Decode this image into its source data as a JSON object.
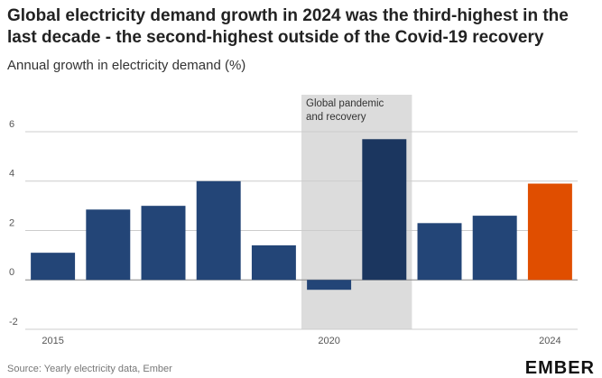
{
  "chart_data": {
    "type": "bar",
    "title": "Global electricity demand growth in 2024 was the third-highest in the last decade - the second-highest outside of the Covid-19 recovery",
    "subtitle": "Annual growth in electricity demand (%)",
    "x": [
      2015,
      2016,
      2017,
      2018,
      2019,
      2020,
      2021,
      2022,
      2023,
      2024
    ],
    "values": [
      1.1,
      2.85,
      3.0,
      4.0,
      1.4,
      -0.4,
      5.7,
      2.3,
      2.6,
      3.9
    ],
    "colors": [
      "#234577",
      "#234577",
      "#234577",
      "#234577",
      "#234577",
      "#234577",
      "#1b365f",
      "#234577",
      "#234577",
      "#e04e00"
    ],
    "xlim": [
      2014.5,
      2024.5
    ],
    "xticks": [
      2015,
      2020,
      2024
    ],
    "ylim": [
      -2,
      7.5
    ],
    "yticks": [
      -2,
      0,
      2,
      4,
      6
    ],
    "grid": true,
    "shaded_region": {
      "label": "Global pandemic and recovery",
      "x": [
        2019.5,
        2021.5
      ],
      "color": "#dcdcdc"
    },
    "source": "Source: Yearly electricity data, Ember",
    "logo": "EMBER"
  }
}
